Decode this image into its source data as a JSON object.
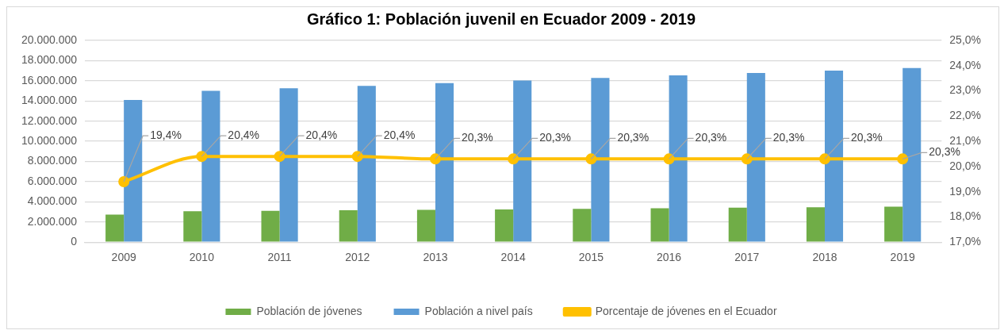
{
  "chart_data": {
    "type": "bar",
    "title": "Gráfico 1: Población juvenil en Ecuador 2009 - 2019",
    "categories": [
      "2009",
      "2010",
      "2011",
      "2012",
      "2013",
      "2014",
      "2015",
      "2016",
      "2017",
      "2018",
      "2019"
    ],
    "series": [
      {
        "name": "Población de jóvenes",
        "color": "#70ad47",
        "values": [
          2740000,
          3060000,
          3110000,
          3160000,
          3200000,
          3250000,
          3300000,
          3360000,
          3410000,
          3460000,
          3510000
        ]
      },
      {
        "name": "Población a nivel país",
        "color": "#5b9bd5",
        "values": [
          14100000,
          15000000,
          15250000,
          15500000,
          15770000,
          16030000,
          16280000,
          16530000,
          16780000,
          17020000,
          17270000
        ]
      },
      {
        "name": "Porcentaje de jóvenes en el Ecuador",
        "type": "line",
        "axis": "y2",
        "color": "#ffc000",
        "values": [
          19.4,
          20.4,
          20.4,
          20.4,
          20.3,
          20.3,
          20.3,
          20.3,
          20.3,
          20.3,
          20.3
        ],
        "value_labels": [
          "19,4%",
          "20,4%",
          "20,4%",
          "20,4%",
          "20,3%",
          "20,3%",
          "20,3%",
          "20,3%",
          "20,3%",
          "20,3%",
          "20,3%"
        ]
      }
    ],
    "ylim": [
      0,
      20000000
    ],
    "yticks": [
      0,
      {
        "value": 2000000,
        "label": "2.000.000"
      },
      {
        "value": 4000000,
        "label": "4.000.000"
      },
      {
        "value": 6000000,
        "label": "6.000.000"
      },
      {
        "value": 8000000,
        "label": "8.000.000"
      },
      {
        "value": 10000000,
        "label": "10.000.000"
      },
      {
        "value": 12000000,
        "label": "12.000.000"
      },
      {
        "value": 14000000,
        "label": "14.000.000"
      },
      {
        "value": 16000000,
        "label": "16.000.000"
      },
      {
        "value": 18000000,
        "label": "18.000.000"
      },
      {
        "value": 20000000,
        "label": "20.000.000"
      }
    ],
    "y2lim": [
      17,
      25
    ],
    "y2ticks": [
      {
        "value": 17,
        "label": "17,0%"
      },
      {
        "value": 18,
        "label": "18,0%"
      },
      {
        "value": 19,
        "label": "19,0%"
      },
      {
        "value": 20,
        "label": "20,0%"
      },
      {
        "value": 21,
        "label": "21,0%"
      },
      {
        "value": 22,
        "label": "22,0%"
      },
      {
        "value": 23,
        "label": "23,0%"
      },
      {
        "value": 24,
        "label": "24,0%"
      },
      {
        "value": 25,
        "label": "25,0%"
      }
    ],
    "grid": "y",
    "legend": "bottom",
    "marker": "circle"
  }
}
